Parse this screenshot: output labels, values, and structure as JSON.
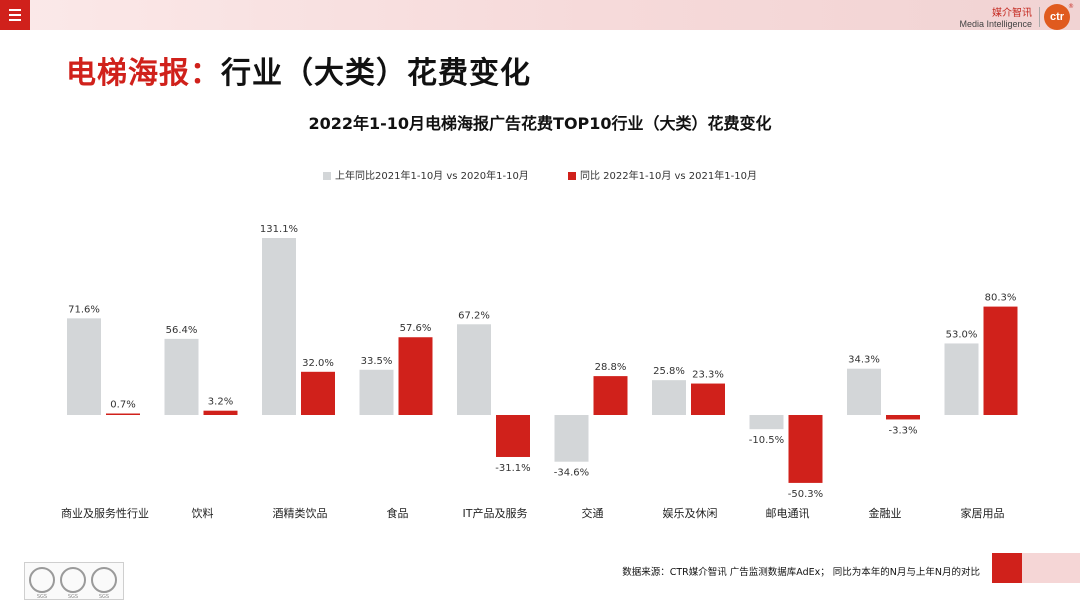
{
  "header": {
    "brand_cn": "媒介智讯",
    "brand_en": "Media Intelligence",
    "logo_text": "ctr",
    "logo_reg": "®"
  },
  "page_title": {
    "red": "电梯海报：",
    "black": "行业（大类）花费变化"
  },
  "chart_data": {
    "type": "bar",
    "title": "2022年1-10月电梯海报广告花费TOP10行业（大类）花费变化",
    "categories": [
      "商业及服务性行业",
      "饮料",
      "酒精类饮品",
      "食品",
      "IT产品及服务",
      "交通",
      "娱乐及休闲",
      "邮电通讯",
      "金融业",
      "家居用品"
    ],
    "series": [
      {
        "name": "上年同比2021年1-10月  vs  2020年1-10月",
        "color": "#d3d6d8",
        "values": [
          71.6,
          56.4,
          131.1,
          33.5,
          67.2,
          -34.6,
          25.8,
          -10.5,
          34.3,
          53.0
        ],
        "labels": [
          "71.6%",
          "56.4%",
          "131.1%",
          "33.5%",
          "67.2%",
          "-34.6%",
          "25.8%",
          "-10.5%",
          "34.3%",
          "53.0%"
        ]
      },
      {
        "name": "同比 2022年1-10月  vs  2021年1-10月",
        "color": "#d0211b",
        "values": [
          0.7,
          3.2,
          32.0,
          57.6,
          -31.1,
          28.8,
          23.3,
          -50.3,
          -3.3,
          80.3
        ],
        "labels": [
          "0.7%",
          "3.2%",
          "32.0%",
          "57.6%",
          "-31.1%",
          "28.8%",
          "23.3%",
          "-50.3%",
          "-3.3%",
          "80.3%"
        ]
      }
    ],
    "unit": "%",
    "grid": false,
    "legend_position": "top"
  },
  "footer": {
    "source": "数据来源：CTR媒介智讯 广告监测数据库AdEx；  同比为本年的N月与上年N月的对比",
    "cert_text": "SGS"
  }
}
